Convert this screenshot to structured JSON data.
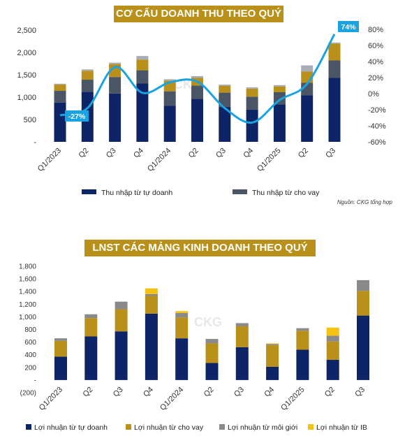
{
  "chart_data": [
    {
      "type": "bar",
      "title": "CƠ CẤU DOANH THU THEO QUÝ",
      "stacked": true,
      "categories": [
        "Q1/2023",
        "Q2",
        "Q3",
        "Q4",
        "Q1/2024",
        "Q2",
        "Q3",
        "Q4",
        "Q1/2025",
        "Q2",
        "Q3"
      ],
      "series": [
        {
          "name": "Thu nhập từ tự doanh",
          "color": "#0d2466",
          "values": [
            880,
            1120,
            1080,
            1310,
            810,
            960,
            780,
            720,
            840,
            1040,
            1430
          ]
        },
        {
          "name": "Thu nhập từ cho vay",
          "color": "#4a5566",
          "values": [
            260,
            270,
            370,
            290,
            320,
            300,
            320,
            290,
            270,
            280,
            390
          ]
        },
        {
          "name": "",
          "color": "#b8901a",
          "values": [
            140,
            200,
            290,
            240,
            240,
            170,
            150,
            180,
            130,
            250,
            380
          ]
        },
        {
          "name": "",
          "color": "#a9aeb6",
          "values": [
            20,
            30,
            30,
            80,
            30,
            40,
            30,
            30,
            30,
            140,
            20
          ]
        }
      ],
      "line": {
        "name": "",
        "color": "#1aa3e0",
        "axis": "right",
        "values": [
          -27,
          -18,
          33,
          1,
          14,
          15,
          -18,
          -36,
          -8,
          12,
          74
        ]
      },
      "yticks_left": [
        "-",
        "500",
        "1,000",
        "1,500",
        "2,000",
        "2,500"
      ],
      "ylim_left": [
        0,
        2500
      ],
      "yticks_right": [
        "-60%",
        "-40%",
        "-20%",
        "0%",
        "20%",
        "40%",
        "60%",
        "80%"
      ],
      "ylim_right": [
        -60,
        80
      ],
      "annotations": [
        {
          "label": "-27%",
          "index": 0
        },
        {
          "label": "74%",
          "index": 10
        }
      ],
      "legend_position": "bottom",
      "source_note": "Nguồn: CKG tổng hợp"
    },
    {
      "type": "bar",
      "title": "LNST CÁC MẢNG KINH DOANH THEO QUÝ",
      "stacked": true,
      "categories": [
        "Q1/2023",
        "Q2",
        "Q3",
        "Q4",
        "Q1/2024",
        "Q2",
        "Q3",
        "Q4",
        "Q1/2025",
        "Q2",
        "Q3"
      ],
      "series": [
        {
          "name": "Lợi nhuận từ tự doanh",
          "color": "#0d2466",
          "values": [
            370,
            690,
            770,
            1050,
            660,
            270,
            520,
            210,
            480,
            320,
            1020
          ]
        },
        {
          "name": "Lợi nhuận từ cho vay",
          "color": "#b8901a",
          "values": [
            250,
            290,
            350,
            280,
            330,
            310,
            330,
            340,
            300,
            290,
            390
          ]
        },
        {
          "name": "Lợi nhuận từ môi giới",
          "color": "#8a8a8a",
          "values": [
            40,
            60,
            120,
            30,
            70,
            70,
            50,
            20,
            40,
            90,
            170
          ]
        },
        {
          "name": "Lợi nhuận từ IB",
          "color": "#f5c211",
          "values": [
            0,
            0,
            0,
            90,
            30,
            0,
            0,
            10,
            0,
            130,
            0
          ]
        }
      ],
      "yticks": [
        "(200)",
        "-",
        "200",
        "400",
        "600",
        "800",
        "1,000",
        "1,200",
        "1,400",
        "1,600",
        "1,800"
      ],
      "ylim": [
        -200,
        1800
      ],
      "legend_position": "bottom"
    }
  ],
  "watermark": "CKG"
}
